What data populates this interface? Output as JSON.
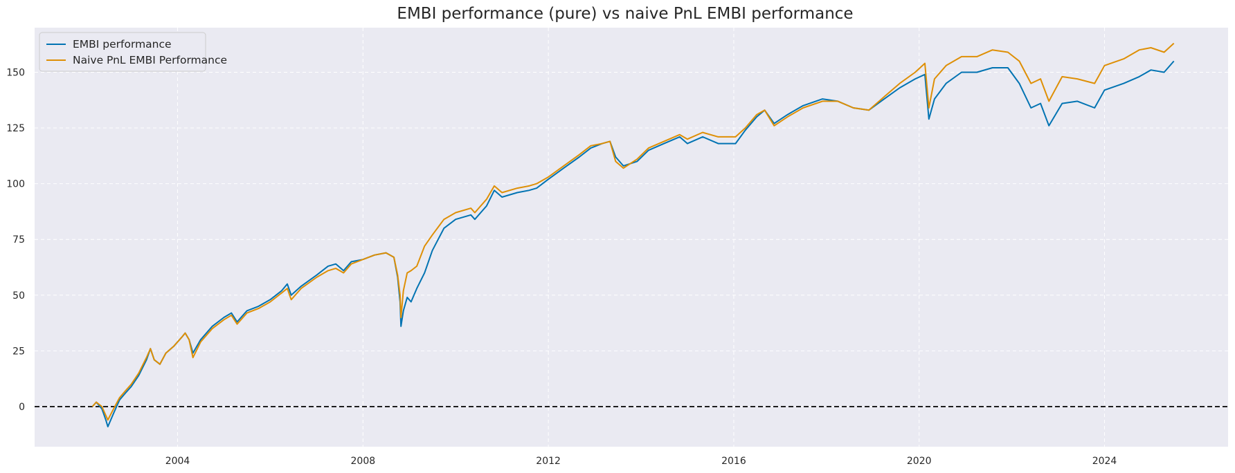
{
  "chart_data": {
    "type": "line",
    "title": "EMBI performance (pure) vs naive PnL EMBI performance",
    "xlabel": "",
    "ylabel": "",
    "x_ticks": [
      "2004",
      "2008",
      "2012",
      "2016",
      "2020",
      "2024"
    ],
    "y_ticks": [
      "0",
      "25",
      "50",
      "75",
      "100",
      "125",
      "150"
    ],
    "xlim": [
      "2000-12-01",
      "2026-09-01"
    ],
    "ylim": [
      -18,
      170
    ],
    "grid": true,
    "legend_position": "top-left",
    "reference_line": {
      "y": 0,
      "style": "dashed",
      "color": "#000000"
    },
    "series": [
      {
        "name": "EMBI performance",
        "color": "#0173b2",
        "points": [
          [
            "2002-03-01",
            0
          ],
          [
            "2002-04-01",
            2
          ],
          [
            "2002-05-15",
            -1
          ],
          [
            "2002-06-15",
            -6
          ],
          [
            "2002-07-01",
            -9
          ],
          [
            "2002-08-15",
            -3
          ],
          [
            "2002-10-01",
            3
          ],
          [
            "2002-11-15",
            6
          ],
          [
            "2003-01-01",
            9
          ],
          [
            "2003-03-01",
            14
          ],
          [
            "2003-05-01",
            21
          ],
          [
            "2003-06-01",
            26
          ],
          [
            "2003-07-01",
            21
          ],
          [
            "2003-08-15",
            19
          ],
          [
            "2003-10-01",
            24
          ],
          [
            "2003-12-01",
            27
          ],
          [
            "2004-02-01",
            31
          ],
          [
            "2004-03-01",
            33
          ],
          [
            "2004-04-01",
            30
          ],
          [
            "2004-05-01",
            24
          ],
          [
            "2004-07-01",
            30
          ],
          [
            "2004-10-01",
            36
          ],
          [
            "2005-01-01",
            40
          ],
          [
            "2005-03-01",
            42
          ],
          [
            "2005-04-15",
            38
          ],
          [
            "2005-07-01",
            43
          ],
          [
            "2005-10-01",
            45
          ],
          [
            "2006-01-01",
            48
          ],
          [
            "2006-04-01",
            52
          ],
          [
            "2006-05-15",
            55
          ],
          [
            "2006-06-15",
            50
          ],
          [
            "2006-09-01",
            54
          ],
          [
            "2007-01-01",
            59
          ],
          [
            "2007-04-01",
            63
          ],
          [
            "2007-06-01",
            64
          ],
          [
            "2007-08-01",
            61
          ],
          [
            "2007-10-01",
            65
          ],
          [
            "2008-01-01",
            66
          ],
          [
            "2008-04-01",
            68
          ],
          [
            "2008-07-01",
            69
          ],
          [
            "2008-09-01",
            67
          ],
          [
            "2008-10-01",
            58
          ],
          [
            "2008-10-20",
            47
          ],
          [
            "2008-10-27",
            36
          ],
          [
            "2008-11-15",
            43
          ],
          [
            "2008-12-15",
            49
          ],
          [
            "2009-01-15",
            47
          ],
          [
            "2009-03-01",
            53
          ],
          [
            "2009-05-01",
            60
          ],
          [
            "2009-07-01",
            70
          ],
          [
            "2009-10-01",
            80
          ],
          [
            "2010-01-01",
            84
          ],
          [
            "2010-05-01",
            86
          ],
          [
            "2010-06-01",
            84
          ],
          [
            "2010-09-01",
            90
          ],
          [
            "2010-11-01",
            97
          ],
          [
            "2011-01-01",
            94
          ],
          [
            "2011-05-01",
            96
          ],
          [
            "2011-08-01",
            97
          ],
          [
            "2011-10-01",
            98
          ],
          [
            "2012-01-01",
            102
          ],
          [
            "2012-05-01",
            107
          ],
          [
            "2012-09-01",
            112
          ],
          [
            "2012-12-01",
            116
          ],
          [
            "2013-03-01",
            118
          ],
          [
            "2013-05-01",
            119
          ],
          [
            "2013-06-15",
            112
          ],
          [
            "2013-08-15",
            108
          ],
          [
            "2013-12-01",
            110
          ],
          [
            "2014-03-01",
            115
          ],
          [
            "2014-07-01",
            118
          ],
          [
            "2014-11-01",
            121
          ],
          [
            "2015-01-01",
            118
          ],
          [
            "2015-05-01",
            121
          ],
          [
            "2015-09-01",
            118
          ],
          [
            "2016-01-15",
            118
          ],
          [
            "2016-04-01",
            124
          ],
          [
            "2016-07-01",
            130
          ],
          [
            "2016-09-01",
            133
          ],
          [
            "2016-11-15",
            127
          ],
          [
            "2017-03-01",
            131
          ],
          [
            "2017-07-01",
            135
          ],
          [
            "2017-12-01",
            138
          ],
          [
            "2018-04-01",
            137
          ],
          [
            "2018-08-01",
            134
          ],
          [
            "2018-12-01",
            133
          ],
          [
            "2019-04-01",
            138
          ],
          [
            "2019-08-01",
            143
          ],
          [
            "2019-12-01",
            147
          ],
          [
            "2020-02-15",
            149
          ],
          [
            "2020-03-18",
            129
          ],
          [
            "2020-05-01",
            138
          ],
          [
            "2020-08-01",
            145
          ],
          [
            "2020-12-01",
            150
          ],
          [
            "2021-04-01",
            150
          ],
          [
            "2021-08-01",
            152
          ],
          [
            "2021-12-01",
            152
          ],
          [
            "2022-03-01",
            145
          ],
          [
            "2022-06-01",
            134
          ],
          [
            "2022-08-15",
            136
          ],
          [
            "2022-10-20",
            126
          ],
          [
            "2023-02-01",
            136
          ],
          [
            "2023-06-01",
            137
          ],
          [
            "2023-10-15",
            134
          ],
          [
            "2024-01-01",
            142
          ],
          [
            "2024-06-01",
            145
          ],
          [
            "2024-10-01",
            148
          ],
          [
            "2025-01-01",
            151
          ],
          [
            "2025-04-15",
            150
          ],
          [
            "2025-07-01",
            155
          ]
        ]
      },
      {
        "name": "Naive PnL EMBI Performance",
        "color": "#de8f05",
        "points": [
          [
            "2002-03-01",
            0
          ],
          [
            "2002-04-01",
            2
          ],
          [
            "2002-05-15",
            0
          ],
          [
            "2002-06-15",
            -4
          ],
          [
            "2002-07-01",
            -6
          ],
          [
            "2002-08-15",
            -1
          ],
          [
            "2002-10-01",
            4
          ],
          [
            "2002-11-15",
            7
          ],
          [
            "2003-01-01",
            10
          ],
          [
            "2003-03-01",
            15
          ],
          [
            "2003-05-01",
            22
          ],
          [
            "2003-06-01",
            26
          ],
          [
            "2003-07-01",
            21
          ],
          [
            "2003-08-15",
            19
          ],
          [
            "2003-10-01",
            24
          ],
          [
            "2003-12-01",
            27
          ],
          [
            "2004-02-01",
            31
          ],
          [
            "2004-03-01",
            33
          ],
          [
            "2004-04-01",
            30
          ],
          [
            "2004-05-01",
            22
          ],
          [
            "2004-07-01",
            29
          ],
          [
            "2004-10-01",
            35
          ],
          [
            "2005-01-01",
            39
          ],
          [
            "2005-03-01",
            41
          ],
          [
            "2005-04-15",
            37
          ],
          [
            "2005-07-01",
            42
          ],
          [
            "2005-10-01",
            44
          ],
          [
            "2006-01-01",
            47
          ],
          [
            "2006-04-01",
            51
          ],
          [
            "2006-05-15",
            53
          ],
          [
            "2006-06-15",
            48
          ],
          [
            "2006-09-01",
            53
          ],
          [
            "2007-01-01",
            58
          ],
          [
            "2007-04-01",
            61
          ],
          [
            "2007-06-01",
            62
          ],
          [
            "2007-08-01",
            60
          ],
          [
            "2007-10-01",
            64
          ],
          [
            "2008-01-01",
            66
          ],
          [
            "2008-04-01",
            68
          ],
          [
            "2008-07-01",
            69
          ],
          [
            "2008-09-01",
            67
          ],
          [
            "2008-10-01",
            59
          ],
          [
            "2008-10-20",
            50
          ],
          [
            "2008-10-27",
            40
          ],
          [
            "2008-11-15",
            52
          ],
          [
            "2008-12-15",
            60
          ],
          [
            "2009-01-15",
            61
          ],
          [
            "2009-03-01",
            63
          ],
          [
            "2009-05-01",
            72
          ],
          [
            "2009-07-01",
            77
          ],
          [
            "2009-10-01",
            84
          ],
          [
            "2010-01-01",
            87
          ],
          [
            "2010-05-01",
            89
          ],
          [
            "2010-06-01",
            87
          ],
          [
            "2010-09-01",
            93
          ],
          [
            "2010-11-01",
            99
          ],
          [
            "2011-01-01",
            96
          ],
          [
            "2011-05-01",
            98
          ],
          [
            "2011-08-01",
            99
          ],
          [
            "2011-10-01",
            100
          ],
          [
            "2012-01-01",
            103
          ],
          [
            "2012-05-01",
            108
          ],
          [
            "2012-09-01",
            113
          ],
          [
            "2012-12-01",
            117
          ],
          [
            "2013-03-01",
            118
          ],
          [
            "2013-05-01",
            119
          ],
          [
            "2013-06-15",
            110
          ],
          [
            "2013-08-15",
            107
          ],
          [
            "2013-12-01",
            111
          ],
          [
            "2014-03-01",
            116
          ],
          [
            "2014-07-01",
            119
          ],
          [
            "2014-11-01",
            122
          ],
          [
            "2015-01-01",
            120
          ],
          [
            "2015-05-01",
            123
          ],
          [
            "2015-09-01",
            121
          ],
          [
            "2016-01-15",
            121
          ],
          [
            "2016-04-01",
            125
          ],
          [
            "2016-07-01",
            131
          ],
          [
            "2016-09-01",
            133
          ],
          [
            "2016-11-15",
            126
          ],
          [
            "2017-03-01",
            130
          ],
          [
            "2017-07-01",
            134
          ],
          [
            "2017-12-01",
            137
          ],
          [
            "2018-04-01",
            137
          ],
          [
            "2018-08-01",
            134
          ],
          [
            "2018-12-01",
            133
          ],
          [
            "2019-04-01",
            139
          ],
          [
            "2019-08-01",
            145
          ],
          [
            "2019-12-01",
            150
          ],
          [
            "2020-02-15",
            154
          ],
          [
            "2020-03-18",
            134
          ],
          [
            "2020-05-01",
            147
          ],
          [
            "2020-08-01",
            153
          ],
          [
            "2020-12-01",
            157
          ],
          [
            "2021-04-01",
            157
          ],
          [
            "2021-08-01",
            160
          ],
          [
            "2021-12-01",
            159
          ],
          [
            "2022-03-01",
            155
          ],
          [
            "2022-06-01",
            145
          ],
          [
            "2022-08-15",
            147
          ],
          [
            "2022-10-20",
            137
          ],
          [
            "2023-02-01",
            148
          ],
          [
            "2023-06-01",
            147
          ],
          [
            "2023-10-15",
            145
          ],
          [
            "2024-01-01",
            153
          ],
          [
            "2024-06-01",
            156
          ],
          [
            "2024-10-01",
            160
          ],
          [
            "2025-01-01",
            161
          ],
          [
            "2025-04-15",
            159
          ],
          [
            "2025-07-01",
            163
          ]
        ]
      }
    ]
  }
}
